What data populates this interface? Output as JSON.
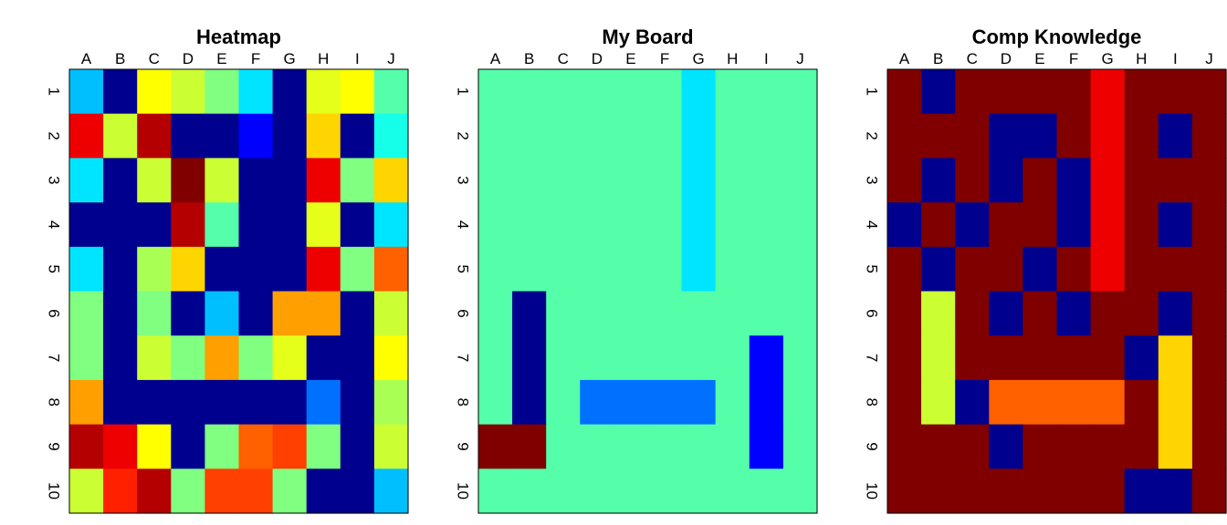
{
  "colors": {
    "palette": [
      "#00008F",
      "#0000FF",
      "#0070FF",
      "#00BFFF",
      "#00E5FF",
      "#16FFE9",
      "#55FFAA",
      "#80FF80",
      "#AAFF55",
      "#CCFF33",
      "#E5FF1A",
      "#FFFF00",
      "#FFD500",
      "#FF9F00",
      "#FF6000",
      "#FF4000",
      "#FF2000",
      "#EE0000",
      "#B40000",
      "#800000"
    ],
    "legend": {
      "0": "dark blue",
      "1": "blue",
      "2": "azure",
      "3": "deep sky blue",
      "4": "cyan",
      "5": "aqua",
      "6": "sea green",
      "7": "light green",
      "8": "yellow green",
      "9": "lime yellow",
      "10": "chartreuse yellow",
      "11": "yellow",
      "12": "gold",
      "13": "orange",
      "14": "dark orange",
      "15": "orange red",
      "16": "red orange",
      "17": "red",
      "18": "dark red",
      "19": "maroon"
    }
  },
  "chart_data": [
    {
      "type": "heatmap",
      "title": "Heatmap",
      "x_categories": [
        "A",
        "B",
        "C",
        "D",
        "E",
        "F",
        "G",
        "H",
        "I",
        "J"
      ],
      "y_categories": [
        "1",
        "2",
        "3",
        "4",
        "5",
        "6",
        "7",
        "8",
        "9",
        "10"
      ],
      "values": [
        [
          3,
          0,
          11,
          9,
          7,
          4,
          0,
          10,
          11,
          6
        ],
        [
          17,
          9,
          18,
          0,
          0,
          1,
          0,
          12,
          0,
          5
        ],
        [
          4,
          0,
          9,
          19,
          9,
          0,
          0,
          17,
          7,
          12
        ],
        [
          0,
          0,
          0,
          18,
          6,
          0,
          0,
          10,
          0,
          4
        ],
        [
          4,
          0,
          8,
          12,
          0,
          0,
          0,
          17,
          7,
          14
        ],
        [
          7,
          0,
          7,
          0,
          3,
          0,
          13,
          13,
          0,
          9
        ],
        [
          7,
          0,
          9,
          7,
          13,
          7,
          10,
          0,
          0,
          11
        ],
        [
          13,
          0,
          0,
          0,
          0,
          0,
          0,
          2,
          0,
          8
        ],
        [
          18,
          17,
          11,
          0,
          7,
          14,
          15,
          7,
          0,
          9
        ],
        [
          9,
          16,
          18,
          7,
          15,
          15,
          7,
          0,
          0,
          3
        ]
      ]
    },
    {
      "type": "heatmap",
      "title": "My Board",
      "x_categories": [
        "A",
        "B",
        "C",
        "D",
        "E",
        "F",
        "G",
        "H",
        "I",
        "J"
      ],
      "y_categories": [
        "1",
        "2",
        "3",
        "4",
        "5",
        "6",
        "7",
        "8",
        "9",
        "10"
      ],
      "values": [
        [
          6,
          6,
          6,
          6,
          6,
          6,
          4,
          6,
          6,
          6
        ],
        [
          6,
          6,
          6,
          6,
          6,
          6,
          4,
          6,
          6,
          6
        ],
        [
          6,
          6,
          6,
          6,
          6,
          6,
          4,
          6,
          6,
          6
        ],
        [
          6,
          6,
          6,
          6,
          6,
          6,
          4,
          6,
          6,
          6
        ],
        [
          6,
          6,
          6,
          6,
          6,
          6,
          4,
          6,
          6,
          6
        ],
        [
          6,
          0,
          6,
          6,
          6,
          6,
          6,
          6,
          6,
          6
        ],
        [
          6,
          0,
          6,
          6,
          6,
          6,
          6,
          6,
          1,
          6
        ],
        [
          6,
          0,
          6,
          2,
          2,
          2,
          2,
          6,
          1,
          6
        ],
        [
          19,
          19,
          6,
          6,
          6,
          6,
          6,
          6,
          1,
          6
        ],
        [
          6,
          6,
          6,
          6,
          6,
          6,
          6,
          6,
          6,
          6
        ]
      ]
    },
    {
      "type": "heatmap",
      "title": "Comp Knowledge",
      "x_categories": [
        "A",
        "B",
        "C",
        "D",
        "E",
        "F",
        "G",
        "H",
        "I",
        "J"
      ],
      "y_categories": [
        "1",
        "2",
        "3",
        "4",
        "5",
        "6",
        "7",
        "8",
        "9",
        "10"
      ],
      "values": [
        [
          19,
          0,
          19,
          19,
          19,
          19,
          17,
          19,
          19,
          19
        ],
        [
          19,
          19,
          19,
          0,
          0,
          19,
          17,
          19,
          0,
          19
        ],
        [
          19,
          0,
          19,
          0,
          19,
          0,
          17,
          19,
          19,
          19
        ],
        [
          0,
          19,
          0,
          19,
          19,
          0,
          17,
          19,
          0,
          19
        ],
        [
          19,
          0,
          19,
          19,
          0,
          19,
          17,
          19,
          19,
          19
        ],
        [
          19,
          9,
          19,
          0,
          19,
          0,
          19,
          19,
          0,
          19
        ],
        [
          19,
          9,
          19,
          19,
          19,
          19,
          19,
          0,
          12,
          19
        ],
        [
          19,
          9,
          0,
          14,
          14,
          14,
          14,
          19,
          12,
          19
        ],
        [
          19,
          19,
          19,
          0,
          19,
          19,
          19,
          19,
          12,
          19
        ],
        [
          19,
          19,
          19,
          19,
          19,
          19,
          19,
          0,
          0,
          19
        ]
      ]
    }
  ]
}
